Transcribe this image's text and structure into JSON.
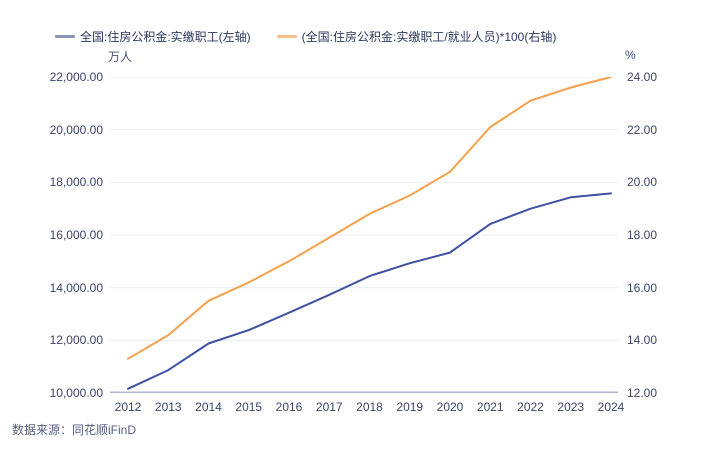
{
  "legend": [
    {
      "label": "全国:住房公积金:实缴职工(左轴)",
      "marker_color": "#8a96b4"
    },
    {
      "label": "(全国:住房公积金:实缴职工/就业人员)*100(右轴)",
      "marker_color": "#f9be8c"
    }
  ],
  "source_note": "数据来源：同花顺iFinD",
  "colors": {
    "series_left": "#3f51a2",
    "series_right": "#f5a04b",
    "gridline": "#ecedf4",
    "axis_line": "#aeb4cc",
    "tick_text": "#3a4468"
  },
  "chart_data": {
    "type": "line",
    "categories": [
      "2012",
      "2013",
      "2014",
      "2015",
      "2016",
      "2017",
      "2018",
      "2019",
      "2020",
      "2021",
      "2022",
      "2023",
      "2024"
    ],
    "series": [
      {
        "name": "全国:住房公积金:实缴职工(左轴)",
        "axis": "left",
        "color": "#3f51a2",
        "values": [
          10160,
          10870,
          11880,
          12390,
          13050,
          13730,
          14440,
          14930,
          15330,
          16420,
          17000,
          17430,
          17580
        ]
      },
      {
        "name": "(全国:住房公积金:实缴职工/就业人员)*100(右轴)",
        "axis": "right",
        "color": "#f5a04b",
        "values": [
          13.3,
          14.2,
          15.5,
          16.2,
          17.0,
          17.9,
          18.8,
          19.5,
          20.4,
          22.1,
          23.1,
          23.6,
          24.0
        ]
      }
    ],
    "left_axis": {
      "unit": "万人",
      "min": 10000,
      "max": 22000,
      "ticks": [
        "22,000.00",
        "20,000.00",
        "18,000.00",
        "16,000.00",
        "14,000.00",
        "12,000.00",
        "10,000.00"
      ]
    },
    "right_axis": {
      "unit": "%",
      "min": 12,
      "max": 24,
      "ticks": [
        "24.00",
        "22.00",
        "20.00",
        "18.00",
        "16.00",
        "14.00",
        "12.00"
      ]
    },
    "grid": true,
    "legend_position": "top"
  }
}
